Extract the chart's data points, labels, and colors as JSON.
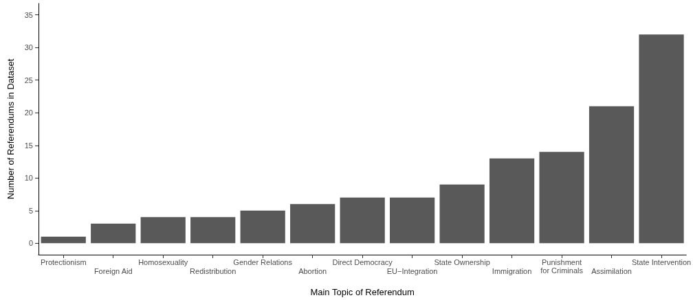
{
  "chart_data": {
    "type": "bar",
    "xlabel": "Main Topic of Referendum",
    "ylabel": "Number of Referendums in Dataset",
    "categories": [
      "Protectionism",
      "Foreign Aid",
      "Homosexuality",
      "Redistribution",
      "Gender Relations",
      "Abortion",
      "Direct Democracy",
      "EU−Integration",
      "State Ownership",
      "Immigration",
      "Punishment\nfor Criminals",
      "Assimilation",
      "State Intervention"
    ],
    "values": [
      1,
      3,
      4,
      4,
      5,
      6,
      7,
      7,
      9,
      13,
      14,
      21,
      32
    ],
    "color": "#595959",
    "ylim": [
      -1.75,
      36.75
    ],
    "yticks": [
      0,
      5,
      10,
      15,
      20,
      25,
      30,
      35
    ],
    "grid": false
  }
}
